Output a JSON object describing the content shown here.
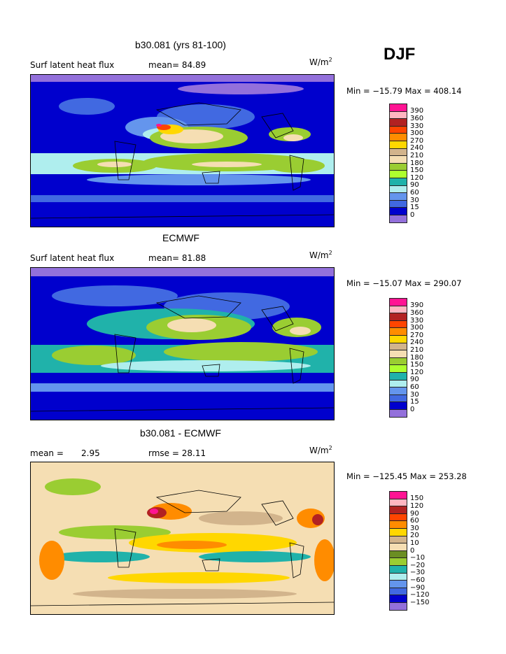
{
  "season": "DJF",
  "panels": [
    {
      "title": "b30.081 (yrs 81-100)",
      "field_label": "Surf latent heat flux",
      "stat1": "mean=  84.89",
      "stat2": "",
      "units": "W/m",
      "units_exp": "2",
      "minmax": "Min = −15.79 Max = 408.14",
      "levels": [
        "390",
        "360",
        "330",
        "300",
        "270",
        "240",
        "210",
        "180",
        "150",
        "120",
        "90",
        "60",
        "30",
        "15",
        "0"
      ],
      "colors": [
        "#ff1493",
        "#ffb6c1",
        "#b22222",
        "#ff4500",
        "#ff8c00",
        "#ffd700",
        "#d2b48c",
        "#f5deb3",
        "#9acd32",
        "#adff2f",
        "#20b2aa",
        "#afeeee",
        "#6495ed",
        "#4169e1",
        "#0000cd",
        "#9370db"
      ]
    },
    {
      "title": "ECMWF",
      "field_label": "Surf latent heat flux",
      "stat1": "mean=  81.88",
      "stat2": "",
      "units": "W/m",
      "units_exp": "2",
      "minmax": "Min = −15.07 Max = 290.07",
      "levels": [
        "390",
        "360",
        "330",
        "300",
        "270",
        "240",
        "210",
        "180",
        "150",
        "120",
        "90",
        "60",
        "30",
        "15",
        "0"
      ],
      "colors": [
        "#ff1493",
        "#ffb6c1",
        "#b22222",
        "#ff4500",
        "#ff8c00",
        "#ffd700",
        "#d2b48c",
        "#f5deb3",
        "#9acd32",
        "#adff2f",
        "#20b2aa",
        "#afeeee",
        "#6495ed",
        "#4169e1",
        "#0000cd",
        "#9370db"
      ]
    },
    {
      "title": "b30.081 - ECMWF",
      "field_label": "mean =",
      "stat1": "2.95",
      "stat2": "rmse =  28.11",
      "units": "W/m",
      "units_exp": "2",
      "minmax": "Min = −125.45 Max = 253.28",
      "levels": [
        "150",
        "120",
        "90",
        "60",
        "30",
        "20",
        "10",
        "0",
        "−10",
        "−20",
        "−30",
        "−60",
        "−90",
        "−120",
        "−150"
      ],
      "colors": [
        "#ff1493",
        "#ffb6c1",
        "#b22222",
        "#ff4500",
        "#ff8c00",
        "#ffd700",
        "#d2b48c",
        "#f5deb3",
        "#6b8e23",
        "#9acd32",
        "#20b2aa",
        "#afeeee",
        "#6495ed",
        "#4169e1",
        "#0000cd",
        "#9370db"
      ]
    }
  ]
}
